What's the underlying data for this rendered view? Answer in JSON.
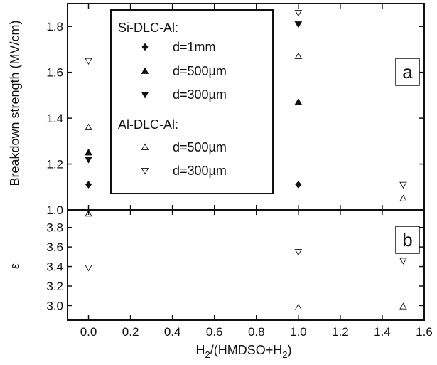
{
  "chart_data": {
    "type": "scatter",
    "xlabel": {
      "base": "H",
      "sub1": "2",
      "mid": "/(HMDSO+H",
      "sub2": "2",
      "end": ")"
    },
    "xlim": [
      -0.1,
      1.6
    ],
    "x_ticks": [
      "0.0",
      "0.2",
      "0.4",
      "0.6",
      "0.8",
      "1.0",
      "1.2",
      "1.4",
      "1.6"
    ],
    "x_tick_values": [
      0.0,
      0.2,
      0.4,
      0.6,
      0.8,
      1.0,
      1.2,
      1.4,
      1.6
    ],
    "legend": {
      "group1_title": "Si-DLC-Al:",
      "group2_title": "Al-DLC-Al:",
      "placement": "upper-left, top panel"
    },
    "panels": [
      {
        "id": "a",
        "label": "a",
        "ylabel": "Breakdown strength (MV/cm)",
        "ylim": [
          1.0,
          1.9
        ],
        "y_ticks": [
          "1.0",
          "1.2",
          "1.4",
          "1.6",
          "1.8"
        ],
        "y_tick_values": [
          1.0,
          1.2,
          1.4,
          1.6,
          1.8
        ],
        "series": [
          {
            "name": "d=1mm",
            "marker": "diamond-filled",
            "x": [
              0.0,
              1.0
            ],
            "y": [
              1.11,
              1.11
            ]
          },
          {
            "name": "d=500µm",
            "marker": "triangle-up-filled",
            "x": [
              0.0,
              1.0
            ],
            "y": [
              1.25,
              1.47
            ]
          },
          {
            "name": "d=300µm",
            "marker": "triangle-down-filled",
            "x": [
              0.0,
              1.0
            ],
            "y": [
              1.22,
              1.81
            ]
          },
          {
            "name": "d=500µm",
            "marker": "triangle-up-open",
            "x": [
              0.0,
              1.0,
              1.5
            ],
            "y": [
              1.36,
              1.67,
              1.05
            ]
          },
          {
            "name": "d=300µm",
            "marker": "triangle-down-open",
            "x": [
              0.0,
              1.0,
              1.5
            ],
            "y": [
              1.65,
              1.86,
              1.11
            ]
          }
        ]
      },
      {
        "id": "b",
        "label": "b",
        "ylabel": "ε",
        "ylim": [
          2.85,
          3.98
        ],
        "y_ticks": [
          "3.0",
          "3.2",
          "3.4",
          "3.6",
          "3.8"
        ],
        "y_tick_values": [
          3.0,
          3.2,
          3.4,
          3.6,
          3.8
        ],
        "series": [
          {
            "name": "d=500µm",
            "marker": "triangle-up-open",
            "x": [
              0.0,
              1.0,
              1.5
            ],
            "y": [
              3.94,
              2.98,
              2.99
            ]
          },
          {
            "name": "d=300µm",
            "marker": "triangle-down-open",
            "x": [
              0.0,
              1.0,
              1.5
            ],
            "y": [
              3.39,
              3.55,
              3.46
            ]
          }
        ]
      }
    ]
  }
}
